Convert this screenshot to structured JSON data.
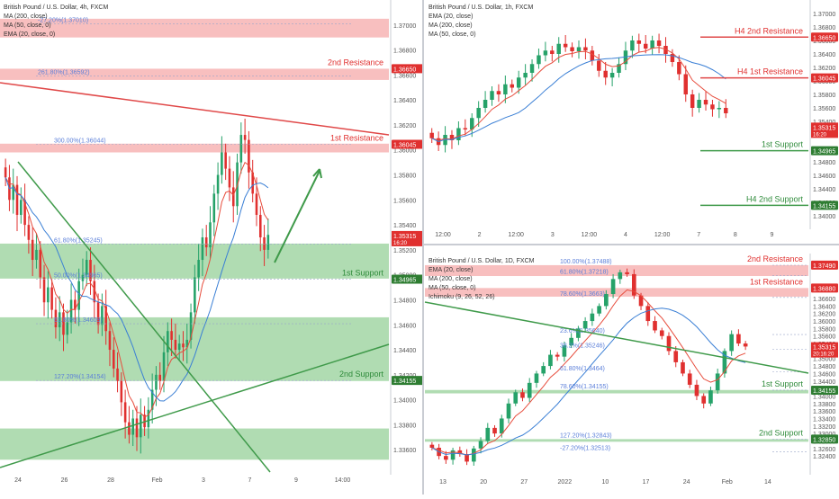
{
  "colors": {
    "up": "#26a269",
    "down": "#e0302f",
    "resistance_fill": "#f28b8b",
    "support_fill": "#6fbf73",
    "trend_red": "#e04848",
    "trend_green": "#3f9a4a",
    "ma200": "#f08080",
    "ma50": "#3a7fd5",
    "ema20": "#e74c3c",
    "label_resistance": "#e0302f",
    "label_support": "#2e8b3a",
    "price_tag": "#e0302f",
    "fib": "#5b7fd9"
  },
  "chart_data": [
    {
      "id": "h4",
      "type": "candlestick",
      "legend": [
        "British Pound / U.S. Dollar, 4h, FXCM",
        "MA (200, close)",
        "MA (50, close, 0)",
        "EMA (20, close, 0)"
      ],
      "ylim": [
        1.334,
        1.372
      ],
      "yticks": [
        "1.37000",
        "1.36800",
        "1.36600",
        "1.36400",
        "1.36200",
        "1.36000",
        "1.35800",
        "1.35600",
        "1.35400",
        "1.35200",
        "1.35000",
        "1.34800",
        "1.34600",
        "1.34400",
        "1.34200",
        "1.34000",
        "1.33800",
        "1.33600",
        "1.33400"
      ],
      "xticks": [
        "24",
        "26",
        "28",
        "Feb",
        "3",
        "7",
        "9",
        "14:00"
      ],
      "zones": [
        {
          "kind": "res",
          "from": 1.369,
          "to": 1.3705
        },
        {
          "kind": "res",
          "from": 1.3656,
          "to": 1.3665
        },
        {
          "kind": "res",
          "from": 1.3598,
          "to": 1.3605
        },
        {
          "kind": "sup",
          "from": 1.3497,
          "to": 1.3525
        },
        {
          "kind": "sup",
          "from": 1.3415,
          "to": 1.3466
        },
        {
          "kind": "sup",
          "from": 1.3352,
          "to": 1.3377
        }
      ],
      "levels": [
        {
          "name": "2nd Resistance",
          "price_tag": "1.36650",
          "kind": "res"
        },
        {
          "name": "1st Resistance",
          "price_tag": "1.36045",
          "kind": "res"
        },
        {
          "name": "1st Support",
          "price_tag": "1.34965",
          "kind": "sup"
        },
        {
          "name": "2nd Support",
          "price_tag": "1.34155",
          "kind": "sup"
        }
      ],
      "current_tag": {
        "price": "1.35315",
        "time": "16:20"
      },
      "fib_labels": [
        "-27.20%(1.37010)",
        "261.80%(1.36592)",
        "300.00%(1.36044)",
        "61.80%(1.35245)",
        "50.00%(1.34965)",
        "61.80%(1.34609)",
        "127.20%(1.34154)"
      ],
      "closes": [
        1.3578,
        1.356,
        1.3572,
        1.3548,
        1.356,
        1.354,
        1.3528,
        1.3512,
        1.352,
        1.3498,
        1.3478,
        1.349,
        1.3472,
        1.3458,
        1.347,
        1.3452,
        1.3462,
        1.348,
        1.3472,
        1.3495,
        1.35,
        1.3512,
        1.3495,
        1.3478,
        1.346,
        1.3475,
        1.3455,
        1.344,
        1.3425,
        1.3415,
        1.3398,
        1.3382,
        1.3372,
        1.3385,
        1.337,
        1.3388,
        1.3378,
        1.3392,
        1.3408,
        1.342,
        1.3415,
        1.3438,
        1.3455,
        1.3448,
        1.344,
        1.3445,
        1.3442,
        1.3448,
        1.347,
        1.3498,
        1.3512,
        1.353,
        1.3522,
        1.3542,
        1.3565,
        1.358,
        1.3598,
        1.3585,
        1.357,
        1.3555,
        1.359,
        1.3612,
        1.3608,
        1.3582,
        1.3565,
        1.3548,
        1.353,
        1.352,
        1.3532
      ]
    },
    {
      "id": "h1",
      "type": "candlestick",
      "legend": [
        "British Pound / U.S. Dollar, 1h, FXCM",
        "EMA (20, close)",
        "MA (200, close)",
        "MA (50, close, 0)"
      ],
      "ylim": [
        1.338,
        1.372
      ],
      "yticks": [
        "1.37000",
        "1.36800",
        "1.36600",
        "1.36400",
        "1.36200",
        "1.36000",
        "1.35800",
        "1.35600",
        "1.35400",
        "1.35200",
        "1.35000",
        "1.34800",
        "1.34600",
        "1.34400",
        "1.34200",
        "1.34000"
      ],
      "xticks": [
        "12:00",
        "2",
        "12:00",
        "3",
        "12:00",
        "4",
        "12:00",
        "7",
        "8",
        "9"
      ],
      "levels": [
        {
          "name": "H4 2nd Resistance",
          "price_tag": "1.36650",
          "kind": "res"
        },
        {
          "name": "H4 1st Resistance",
          "price_tag": "1.36045",
          "kind": "res"
        },
        {
          "name": "1st Support",
          "price_tag": "1.34965",
          "kind": "sup"
        },
        {
          "name": "H4 2nd Support",
          "price_tag": "1.34155",
          "kind": "sup"
        }
      ],
      "current_tag": {
        "price": "1.35315",
        "time": "16:20"
      },
      "closes": [
        1.3515,
        1.3505,
        1.352,
        1.3512,
        1.353,
        1.3528,
        1.3545,
        1.356,
        1.3572,
        1.3585,
        1.358,
        1.3595,
        1.359,
        1.3605,
        1.3612,
        1.3625,
        1.3638,
        1.3645,
        1.364,
        1.3655,
        1.365,
        1.3644,
        1.365,
        1.3645,
        1.363,
        1.3615,
        1.3605,
        1.3612,
        1.3625,
        1.3645,
        1.366,
        1.3655,
        1.3648,
        1.366,
        1.3652,
        1.364,
        1.3628,
        1.361,
        1.358,
        1.356,
        1.3572,
        1.3565,
        1.3558,
        1.356,
        1.3552
      ]
    },
    {
      "id": "d1",
      "type": "candlestick",
      "legend": [
        "British Pound / U.S. Dollar, 1D, FXCM",
        "EMA (20, close)",
        "MA (200, close)",
        "MA (50, close, 0)",
        "Ichimoku (9, 26, 52, 26)"
      ],
      "ylim": [
        1.319,
        1.378
      ],
      "yticks": [
        "1.36600",
        "1.36400",
        "1.36200",
        "1.36000",
        "1.35800",
        "1.35600",
        "1.35400",
        "1.35200",
        "1.35000",
        "1.34800",
        "1.34600",
        "1.34400",
        "1.34200",
        "1.34000",
        "1.33800",
        "1.33600",
        "1.33400",
        "1.33200",
        "1.33000",
        "1.32800",
        "1.32600",
        "1.32400"
      ],
      "xticks": [
        "13",
        "20",
        "27",
        "2022",
        "10",
        "17",
        "24",
        "Feb",
        "14"
      ],
      "zones": [
        {
          "kind": "res",
          "from": 1.372,
          "to": 1.3749
        },
        {
          "kind": "res",
          "from": 1.3665,
          "to": 1.3688
        },
        {
          "kind": "sup",
          "from": 1.3407,
          "to": 1.3416
        },
        {
          "kind": "sup",
          "from": 1.3278,
          "to": 1.3285
        }
      ],
      "levels": [
        {
          "name": "2nd Resistance",
          "price_tag": "1.37490",
          "kind": "res"
        },
        {
          "name": "1st Resistance",
          "price_tag": "1.36880",
          "kind": "res"
        },
        {
          "name": "1st Support",
          "price_tag": "1.34155",
          "kind": "sup"
        },
        {
          "name": "2nd Support",
          "price_tag": "1.32850",
          "kind": "sup"
        }
      ],
      "current_tag": {
        "price": "1.35315",
        "time": "20:16:20"
      },
      "fib_labels": [
        "100.00%(1.37488)",
        "61.80%(1.37218)",
        "78.60%(1.3663)",
        "23.6%(1.35640)",
        "38.2%(1.35246)",
        "61.80%(1.3464)",
        "78.60%(1.34155)",
        "127.20%(1.32843)",
        "-27.20%(1.32513)"
      ],
      "closes": [
        1.3262,
        1.324,
        1.323,
        1.3255,
        1.3245,
        1.3225,
        1.326,
        1.328,
        1.3315,
        1.33,
        1.334,
        1.338,
        1.341,
        1.3395,
        1.3435,
        1.346,
        1.348,
        1.351,
        1.3505,
        1.3535,
        1.3555,
        1.358,
        1.36,
        1.362,
        1.364,
        1.3672,
        1.3712,
        1.373,
        1.3725,
        1.3668,
        1.364,
        1.36,
        1.3575,
        1.356,
        1.352,
        1.349,
        1.346,
        1.343,
        1.34,
        1.338,
        1.3415,
        1.346,
        1.352,
        1.3565,
        1.354,
        1.3532
      ]
    }
  ]
}
